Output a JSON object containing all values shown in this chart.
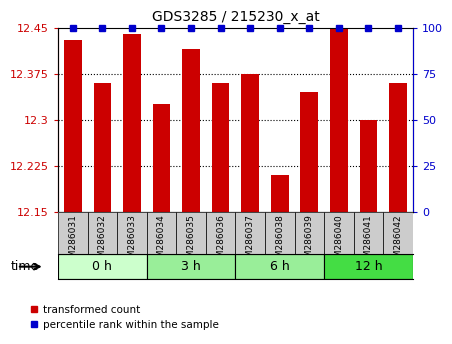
{
  "title": "GDS3285 / 215230_x_at",
  "samples": [
    "GSM286031",
    "GSM286032",
    "GSM286033",
    "GSM286034",
    "GSM286035",
    "GSM286036",
    "GSM286037",
    "GSM286038",
    "GSM286039",
    "GSM286040",
    "GSM286041",
    "GSM286042"
  ],
  "red_values": [
    12.43,
    12.36,
    12.44,
    12.325,
    12.415,
    12.36,
    12.375,
    12.21,
    12.345,
    12.45,
    12.3,
    12.36
  ],
  "blue_values": [
    100,
    100,
    100,
    100,
    100,
    100,
    100,
    100,
    100,
    100,
    100,
    100
  ],
  "ylim_left": [
    12.15,
    12.45
  ],
  "ylim_right": [
    0,
    100
  ],
  "yticks_left": [
    12.15,
    12.225,
    12.3,
    12.375,
    12.45
  ],
  "yticks_right": [
    0,
    25,
    50,
    75,
    100
  ],
  "ytick_labels_left": [
    "12.15",
    "12.225",
    "12.3",
    "12.375",
    "12.45"
  ],
  "ytick_labels_right": [
    "0",
    "25",
    "50",
    "75",
    "100"
  ],
  "groups": [
    {
      "label": "0 h",
      "start": 0,
      "end": 2,
      "color": "#ccffcc"
    },
    {
      "label": "3 h",
      "start": 3,
      "end": 5,
      "color": "#99ee99"
    },
    {
      "label": "6 h",
      "start": 6,
      "end": 8,
      "color": "#99ee99"
    },
    {
      "label": "12 h",
      "start": 9,
      "end": 11,
      "color": "#44dd44"
    }
  ],
  "bar_color": "#cc0000",
  "blue_marker_color": "#0000cc",
  "grid_color": "black",
  "time_label": "time",
  "legend_red": "transformed count",
  "legend_blue": "percentile rank within the sample",
  "bg_color": "white",
  "tick_label_color_left": "#cc0000",
  "tick_label_color_right": "#0000cc",
  "sample_box_color": "#cccccc",
  "n_samples": 12
}
